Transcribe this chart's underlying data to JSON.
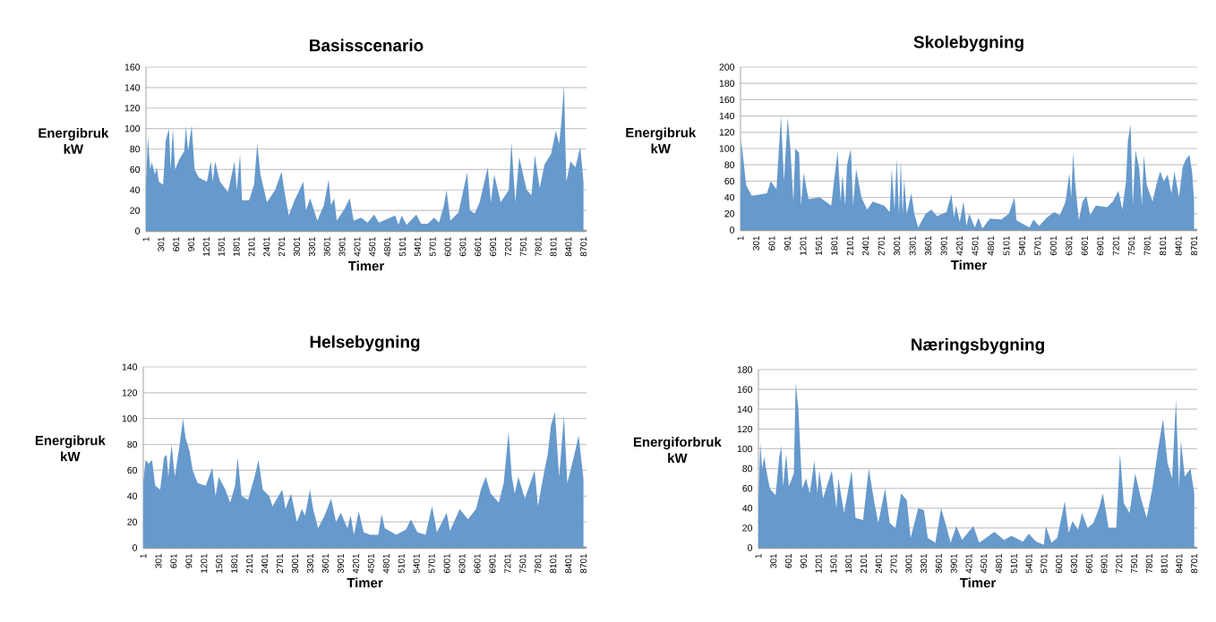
{
  "chart_data": [
    {
      "type": "area",
      "title": "Basisscenario",
      "xlabel": "Timer",
      "ylabel": "Energibruk kW",
      "color": "#6699cc",
      "grid": "y",
      "xlim": [
        1,
        8760
      ],
      "ylim": [
        0,
        160
      ],
      "yticks": [
        0,
        20,
        40,
        60,
        80,
        100,
        120,
        140,
        160
      ],
      "xticks": [
        1,
        301,
        601,
        901,
        1201,
        1501,
        1801,
        2101,
        2401,
        2701,
        3001,
        3301,
        3601,
        3901,
        4201,
        4501,
        4801,
        5101,
        5401,
        5701,
        6001,
        6301,
        6601,
        6901,
        7201,
        7501,
        7801,
        8101,
        8401,
        8701
      ],
      "x": [
        1,
        40,
        84,
        116,
        181,
        213,
        258,
        342,
        394,
        458,
        490,
        536,
        581,
        665,
        762,
        794,
        839,
        910,
        968,
        1052,
        1213,
        1291,
        1330,
        1375,
        1472,
        1633,
        1762,
        1807,
        1872,
        1910,
        2052,
        2149,
        2214,
        2278,
        2407,
        2569,
        2698,
        2749,
        2840,
        2956,
        3053,
        3130,
        3182,
        3266,
        3408,
        3537,
        3634,
        3679,
        3743,
        3795,
        3956,
        4053,
        4130,
        4279,
        4408,
        4537,
        4634,
        4957,
        5021,
        5086,
        5183,
        5376,
        5473,
        5602,
        5731,
        5828,
        5925,
        5976,
        6054,
        6215,
        6312,
        6389,
        6441,
        6538,
        6635,
        6796,
        6860,
        6925,
        7054,
        7215,
        7267,
        7344,
        7422,
        7570,
        7667,
        7732,
        7829,
        7925,
        8054,
        8151,
        8216,
        8261,
        8313,
        8358,
        8442,
        8539,
        8635,
        8700
      ],
      "values": [
        45,
        92,
        60,
        67,
        55,
        62,
        48,
        45,
        88,
        100,
        60,
        100,
        60,
        70,
        78,
        102,
        78,
        103,
        60,
        52,
        48,
        68,
        48,
        68,
        48,
        38,
        68,
        40,
        75,
        30,
        30,
        45,
        85,
        55,
        28,
        40,
        58,
        40,
        15,
        30,
        40,
        48,
        20,
        32,
        10,
        25,
        50,
        25,
        32,
        10,
        22,
        32,
        10,
        13,
        8,
        16,
        8,
        15,
        6,
        15,
        6,
        16,
        7,
        7,
        13,
        8,
        25,
        40,
        10,
        18,
        40,
        57,
        20,
        17,
        28,
        62,
        28,
        55,
        28,
        40,
        87,
        28,
        72,
        40,
        35,
        74,
        42,
        65,
        75,
        98,
        85,
        107,
        142,
        48,
        68,
        62,
        82,
        48
      ]
    },
    {
      "type": "area",
      "title": "Skolebygning",
      "xlabel": "Timer",
      "ylabel": "Energibruk kW",
      "color": "#6699cc",
      "grid": "y",
      "xlim": [
        1,
        8760
      ],
      "ylim": [
        0,
        200
      ],
      "yticks": [
        0,
        20,
        40,
        60,
        80,
        100,
        120,
        140,
        160,
        180,
        200
      ],
      "xticks": [
        1,
        301,
        601,
        901,
        1201,
        1501,
        1801,
        2101,
        2401,
        2701,
        3001,
        3301,
        3601,
        3901,
        4201,
        4501,
        4801,
        5101,
        5401,
        5701,
        6001,
        6301,
        6601,
        6901,
        7201,
        7501,
        7801,
        8101,
        8401,
        8701
      ],
      "x": [
        1,
        15,
        109,
        218,
        508,
        580,
        690,
        776,
        834,
        906,
        957,
        1015,
        1051,
        1124,
        1160,
        1211,
        1305,
        1522,
        1740,
        1863,
        1921,
        1957,
        2008,
        2044,
        2117,
        2160,
        2218,
        2320,
        2429,
        2537,
        2755,
        2864,
        2900,
        2955,
        2995,
        3040,
        3075,
        3110,
        3140,
        3190,
        3277,
        3335,
        3408,
        3552,
        3661,
        3770,
        3951,
        4046,
        4096,
        4133,
        4205,
        4278,
        4335,
        4386,
        4495,
        4568,
        4640,
        4785,
        5003,
        5148,
        5256,
        5293,
        5401,
        5546,
        5619,
        5728,
        5873,
        6018,
        6126,
        6235,
        6308,
        6344,
        6380,
        6416,
        6489,
        6561,
        6634,
        6706,
        6815,
        7033,
        7141,
        7250,
        7323,
        7395,
        7431,
        7482,
        7525,
        7576,
        7649,
        7700,
        7736,
        7794,
        7903,
        7975,
        8048,
        8120,
        8193,
        8265,
        8323,
        8410,
        8483,
        8555,
        8613,
        8664,
        8700
      ],
      "values": [
        40,
        110,
        55,
        42,
        45,
        60,
        50,
        140,
        60,
        138,
        100,
        35,
        100,
        95,
        30,
        70,
        38,
        40,
        30,
        97,
        35,
        68,
        30,
        80,
        100,
        30,
        75,
        40,
        25,
        35,
        30,
        22,
        75,
        25,
        88,
        20,
        85,
        20,
        62,
        20,
        45,
        20,
        3,
        20,
        25,
        17,
        22,
        44,
        15,
        30,
        10,
        35,
        5,
        20,
        3,
        15,
        2,
        14,
        13,
        20,
        40,
        12,
        8,
        3,
        13,
        5,
        15,
        22,
        18,
        35,
        70,
        40,
        95,
        60,
        12,
        35,
        42,
        18,
        30,
        28,
        35,
        48,
        25,
        60,
        110,
        130,
        30,
        98,
        75,
        30,
        92,
        55,
        35,
        55,
        72,
        60,
        68,
        45,
        72,
        40,
        78,
        88,
        92,
        70,
        35
      ]
    },
    {
      "type": "area",
      "title": "Helsebygning",
      "xlabel": "Timer",
      "ylabel": "Energibruk kW",
      "color": "#6699cc",
      "grid": "y",
      "xlim": [
        1,
        8760
      ],
      "ylim": [
        0,
        140
      ],
      "yticks": [
        0,
        20,
        40,
        60,
        80,
        100,
        120,
        140
      ],
      "xticks": [
        1,
        301,
        601,
        901,
        1201,
        1501,
        1801,
        2101,
        2401,
        2701,
        3001,
        3301,
        3601,
        3901,
        4201,
        4501,
        4801,
        5101,
        5401,
        5701,
        6001,
        6301,
        6601,
        6901,
        7201,
        7501,
        7801,
        8101,
        8401,
        8701
      ],
      "x": [
        1,
        45,
        109,
        174,
        238,
        335,
        412,
        463,
        496,
        560,
        624,
        721,
        785,
        837,
        914,
        978,
        1075,
        1236,
        1364,
        1429,
        1493,
        1622,
        1718,
        1815,
        1866,
        1943,
        2072,
        2201,
        2278,
        2362,
        2490,
        2555,
        2748,
        2812,
        2921,
        3037,
        3134,
        3198,
        3295,
        3359,
        3456,
        3585,
        3713,
        3810,
        3906,
        4035,
        4099,
        4164,
        4260,
        4357,
        4485,
        4646,
        4711,
        4775,
        5000,
        5193,
        5290,
        5418,
        5579,
        5708,
        5804,
        5997,
        6062,
        6255,
        6416,
        6577,
        6673,
        6770,
        6866,
        7027,
        7124,
        7220,
        7284,
        7342,
        7413,
        7542,
        7735,
        7800,
        7929,
        7993,
        8058,
        8135,
        8219,
        8315,
        8380,
        8508,
        8605,
        8700
      ],
      "values": [
        50,
        68,
        65,
        68,
        48,
        45,
        70,
        72,
        55,
        80,
        55,
        80,
        100,
        85,
        75,
        60,
        50,
        48,
        62,
        40,
        55,
        45,
        35,
        48,
        70,
        40,
        37,
        55,
        68,
        45,
        40,
        32,
        45,
        30,
        42,
        20,
        30,
        25,
        45,
        30,
        15,
        25,
        38,
        20,
        27,
        15,
        25,
        10,
        28,
        12,
        10,
        10,
        26,
        15,
        10,
        14,
        22,
        12,
        10,
        32,
        12,
        27,
        13,
        30,
        22,
        30,
        45,
        55,
        42,
        35,
        50,
        90,
        55,
        42,
        55,
        38,
        60,
        32,
        60,
        72,
        95,
        105,
        55,
        102,
        50,
        70,
        87,
        53
      ]
    },
    {
      "type": "area",
      "title": "Næringsbygning",
      "xlabel": "Timer",
      "ylabel": "Energiforbruk kW",
      "color": "#6699cc",
      "grid": "y",
      "xlim": [
        1,
        8760
      ],
      "ylim": [
        0,
        180
      ],
      "yticks": [
        0,
        20,
        40,
        60,
        80,
        100,
        120,
        140,
        160,
        180
      ],
      "xticks": [
        1,
        301,
        601,
        901,
        1201,
        1501,
        1801,
        2101,
        2401,
        2701,
        3001,
        3301,
        3601,
        3901,
        4201,
        4501,
        4801,
        5101,
        5401,
        5701,
        6001,
        6301,
        6601,
        6901,
        7201,
        7501,
        7801,
        8101,
        8401,
        8701
      ],
      "x": [
        1,
        38,
        76,
        114,
        152,
        228,
        342,
        418,
        456,
        494,
        555,
        608,
        707,
        745,
        798,
        874,
        950,
        1026,
        1117,
        1178,
        1216,
        1292,
        1466,
        1558,
        1596,
        1710,
        1862,
        1938,
        2090,
        2203,
        2317,
        2393,
        2530,
        2621,
        2735,
        2849,
        2963,
        3039,
        3191,
        3305,
        3381,
        3533,
        3647,
        3761,
        3837,
        3951,
        4065,
        4293,
        4407,
        4711,
        4901,
        5053,
        5281,
        5395,
        5547,
        5699,
        5737,
        5851,
        5965,
        6117,
        6193,
        6269,
        6383,
        6459,
        6573,
        6687,
        6801,
        6877,
        6991,
        7143,
        7219,
        7295,
        7409,
        7523,
        7637,
        7751,
        7865,
        7979,
        8078,
        8169,
        8260,
        8336,
        8397,
        8435,
        8511,
        8625,
        8701
      ],
      "values": [
        50,
        106,
        80,
        92,
        80,
        60,
        53,
        92,
        103,
        62,
        95,
        62,
        75,
        167,
        140,
        60,
        70,
        55,
        88,
        55,
        78,
        50,
        78,
        40,
        70,
        35,
        78,
        30,
        28,
        80,
        45,
        25,
        60,
        25,
        20,
        55,
        48,
        10,
        40,
        38,
        10,
        5,
        40,
        20,
        5,
        22,
        8,
        22,
        5,
        16,
        8,
        12,
        6,
        14,
        6,
        3,
        22,
        5,
        10,
        47,
        15,
        27,
        18,
        35,
        20,
        25,
        40,
        55,
        20,
        20,
        95,
        45,
        35,
        75,
        50,
        30,
        60,
        100,
        130,
        85,
        70,
        150,
        60,
        108,
        72,
        80,
        55
      ]
    }
  ]
}
